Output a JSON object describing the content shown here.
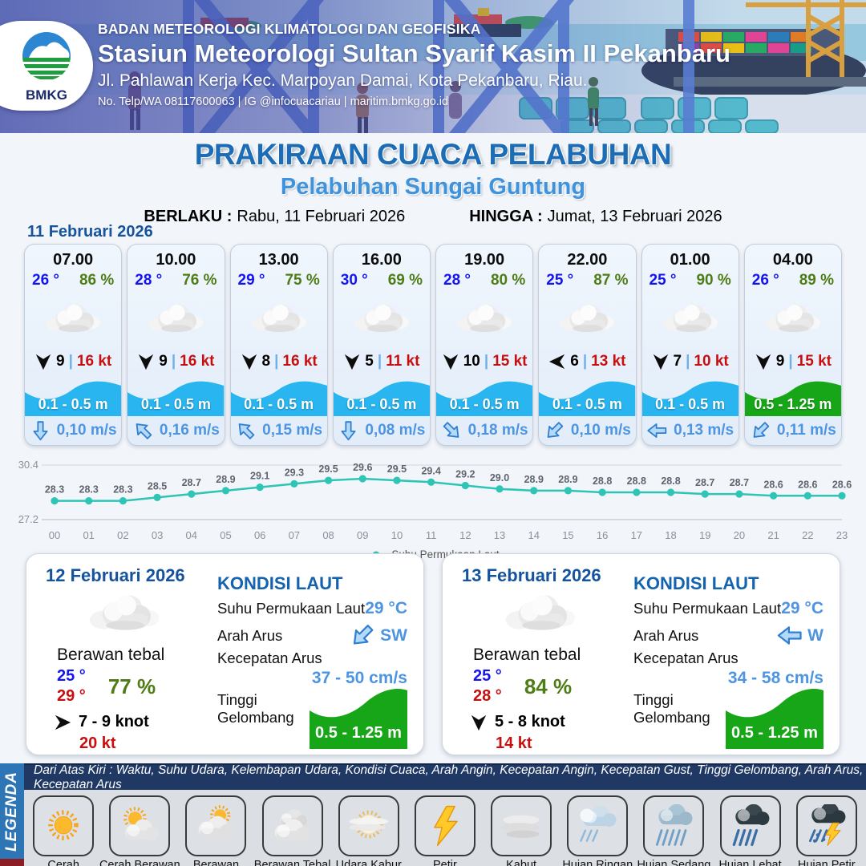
{
  "header": {
    "logo_text": "BMKG",
    "agency": "BADAN METEOROLOGI KLIMATOLOGI DAN GEOFISIKA",
    "station": "Stasiun Meteorologi Sultan Syarif Kasim II Pekanbaru",
    "address": "Jl. Pahlawan Kerja Kec. Marpoyan Damai, Kota Pekanbaru, Riau.",
    "contact": "No. Telp/WA 08117600063 | IG @infocuacariau | maritim.bmkg.go.id"
  },
  "title": {
    "main": "PRAKIRAAN CUACA PELABUHAN",
    "subtitle": "Pelabuhan Sungai Guntung",
    "berlaku_label": "BERLAKU :",
    "berlaku_value": "Rabu, 11 Februari 2026",
    "hingga_label": "HINGGA :",
    "hingga_value": "Jumat, 13 Februari 2026"
  },
  "day1": {
    "date": "11 Februari 2026",
    "cards": [
      {
        "time": "07.00",
        "temp": "26 °",
        "humidity": "86 %",
        "weather_icon": "berawan-tebal",
        "wind": {
          "dir": "S",
          "speed": "9",
          "sep": "|",
          "gust": "16 kt"
        },
        "wave": {
          "range": "0.1 - 0.5 m",
          "color": "#29b5ef"
        },
        "current": {
          "dir": "S",
          "speed": "0,10 m/s"
        }
      },
      {
        "time": "10.00",
        "temp": "28 °",
        "humidity": "76 %",
        "weather_icon": "berawan-tebal",
        "wind": {
          "dir": "S",
          "speed": "9",
          "sep": "|",
          "gust": "16 kt"
        },
        "wave": {
          "range": "0.1 - 0.5 m",
          "color": "#29b5ef"
        },
        "current": {
          "dir": "NW",
          "speed": "0,16 m/s"
        }
      },
      {
        "time": "13.00",
        "temp": "29 °",
        "humidity": "75 %",
        "weather_icon": "berawan-tebal",
        "wind": {
          "dir": "S",
          "speed": "8",
          "sep": "|",
          "gust": "16 kt"
        },
        "wave": {
          "range": "0.1 - 0.5 m",
          "color": "#29b5ef"
        },
        "current": {
          "dir": "NW",
          "speed": "0,15 m/s"
        }
      },
      {
        "time": "16.00",
        "temp": "30 °",
        "humidity": "69 %",
        "weather_icon": "berawan-tebal",
        "wind": {
          "dir": "S",
          "speed": "5",
          "sep": "|",
          "gust": "11 kt"
        },
        "wave": {
          "range": "0.1 - 0.5 m",
          "color": "#29b5ef"
        },
        "current": {
          "dir": "S",
          "speed": "0,08 m/s"
        }
      },
      {
        "time": "19.00",
        "temp": "28 °",
        "humidity": "80 %",
        "weather_icon": "berawan-tebal",
        "wind": {
          "dir": "S",
          "speed": "10",
          "sep": "|",
          "gust": "15 kt"
        },
        "wave": {
          "range": "0.1 - 0.5 m",
          "color": "#29b5ef"
        },
        "current": {
          "dir": "SE",
          "speed": "0,18 m/s"
        }
      },
      {
        "time": "22.00",
        "temp": "25 °",
        "humidity": "87 %",
        "weather_icon": "berawan-tebal",
        "wind": {
          "dir": "W",
          "speed": "6",
          "sep": "|",
          "gust": "13 kt"
        },
        "wave": {
          "range": "0.1 - 0.5 m",
          "color": "#29b5ef"
        },
        "current": {
          "dir": "SW",
          "speed": "0,10 m/s"
        }
      },
      {
        "time": "01.00",
        "temp": "25 °",
        "humidity": "90 %",
        "weather_icon": "berawan-tebal",
        "wind": {
          "dir": "S",
          "speed": "7",
          "sep": "|",
          "gust": "10 kt"
        },
        "wave": {
          "range": "0.1 - 0.5 m",
          "color": "#29b5ef"
        },
        "current": {
          "dir": "W",
          "speed": "0,13 m/s"
        }
      },
      {
        "time": "04.00",
        "temp": "26 °",
        "humidity": "89 %",
        "weather_icon": "berawan-tebal",
        "wind": {
          "dir": "S",
          "speed": "9",
          "sep": "|",
          "gust": "15 kt"
        },
        "wave": {
          "range": "0.5 - 1.25 m",
          "color": "#17a617"
        },
        "current": {
          "dir": "SW",
          "speed": "0,11 m/s"
        }
      }
    ]
  },
  "chart_data": {
    "type": "line",
    "x": [
      "00",
      "01",
      "02",
      "03",
      "04",
      "05",
      "06",
      "07",
      "08",
      "09",
      "10",
      "11",
      "12",
      "13",
      "14",
      "15",
      "16",
      "17",
      "18",
      "19",
      "20",
      "21",
      "22",
      "23"
    ],
    "series": [
      {
        "name": "Suhu Permukaan Laut",
        "values": [
          28.3,
          28.3,
          28.3,
          28.5,
          28.7,
          28.9,
          29.1,
          29.3,
          29.5,
          29.6,
          29.5,
          29.4,
          29.2,
          29.0,
          28.9,
          28.9,
          28.8,
          28.8,
          28.8,
          28.7,
          28.7,
          28.6,
          28.6,
          28.6
        ]
      }
    ],
    "ylim": [
      27.2,
      30.4
    ],
    "yticks": [
      "30.4",
      "27.2"
    ],
    "line_color": "#2ec5b6",
    "grid": true,
    "legend_position": "bottom"
  },
  "day_cards": [
    {
      "date": "12 Februari 2026",
      "weather_icon": "berawan-tebal",
      "condition": "Berawan tebal",
      "temp_min": "25 °",
      "temp_max": "29 °",
      "humidity": "77 %",
      "wind_dir": "E",
      "wind_range": "7  - 9 knot",
      "gust": "20 kt",
      "sea": {
        "title": "KONDISI LAUT",
        "sst_label": "Suhu Permukaan Laut",
        "sst": "29 °C",
        "current_dir_label": "Arah Arus",
        "current_dir": "SW",
        "current_speed_label": "Kecepatan Arus",
        "current_speed": "37  - 50 cm/s",
        "wave_label": "Tinggi Gelombang",
        "wave": "0.5 - 1.25 m",
        "wave_color": "#17a617"
      }
    },
    {
      "date": "13 Februari 2026",
      "weather_icon": "berawan-tebal",
      "condition": "Berawan tebal",
      "temp_min": "25 °",
      "temp_max": "28 °",
      "humidity": "84 %",
      "wind_dir": "S",
      "wind_range": "5  - 8 knot",
      "gust": "14 kt",
      "sea": {
        "title": "KONDISI LAUT",
        "sst_label": "Suhu Permukaan Laut",
        "sst": "29 °C",
        "current_dir_label": "Arah Arus",
        "current_dir": "W",
        "current_speed_label": "Kecepatan Arus",
        "current_speed": "34  - 58 cm/s",
        "wave_label": "Tinggi Gelombang",
        "wave": "0.5 - 1.25 m",
        "wave_color": "#17a617"
      }
    }
  ],
  "legend": {
    "sidebar": "LEGENDA",
    "note": "Dari Atas Kiri : Waktu, Suhu Udara, Kelembapan Udara, Kondisi Cuaca, Arah Angin, Kecepatan Angin, Kecepatan Gust, Tinggi Gelombang, Arah Arus, Kecepatan Arus",
    "items": [
      {
        "label": "Cerah",
        "icon": "sun"
      },
      {
        "label": "Cerah Berawan",
        "icon": "sun-cloud"
      },
      {
        "label": "Berawan",
        "icon": "cloud-sun"
      },
      {
        "label": "Berawan Tebal",
        "icon": "clouds"
      },
      {
        "label": "Udara Kabur",
        "icon": "haze"
      },
      {
        "label": "Petir",
        "icon": "lightning"
      },
      {
        "label": "Kabut",
        "icon": "fog"
      },
      {
        "label": "Hujan Ringan",
        "icon": "rain-light"
      },
      {
        "label": "Hujan Sedang",
        "icon": "rain-medium"
      },
      {
        "label": "Hujan Lebat",
        "icon": "rain-heavy"
      },
      {
        "label": "Hujan Petir",
        "icon": "storm"
      }
    ]
  },
  "colors": {
    "temp_blue": "#1414f0",
    "humidity_green": "#4e7c15",
    "gust_red": "#c80f0f",
    "value_blue": "#4d95e2",
    "heading_blue": "#15539e",
    "wave_blue": "#29b5ef",
    "wave_green": "#17a617",
    "sst_line_teal": "#2ec5b6"
  }
}
